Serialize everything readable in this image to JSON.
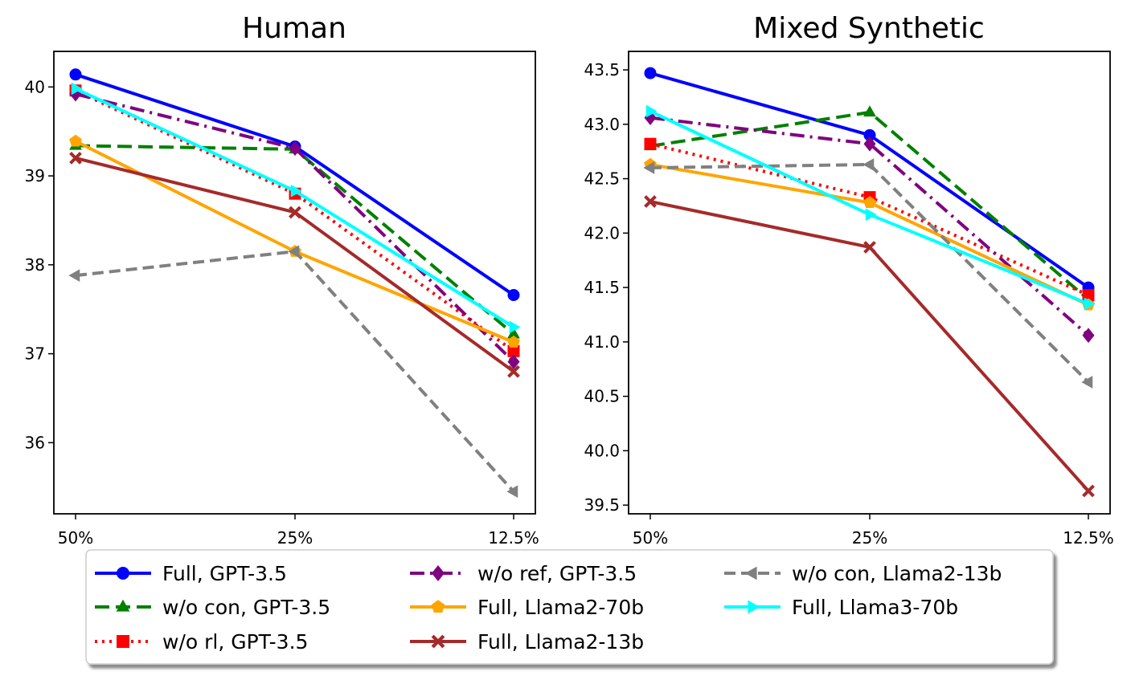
{
  "chart_data": [
    {
      "type": "line",
      "title": "Human",
      "categories": [
        "50%",
        "25%",
        "12.5%"
      ],
      "xlabel": "",
      "ylabel": "",
      "ylim": [
        35.2,
        40.4
      ],
      "yticks": [
        36,
        37,
        38,
        39,
        40
      ],
      "grid": false,
      "series": [
        {
          "name": "Full, GPT-3.5",
          "values": [
            40.14,
            39.33,
            37.66
          ]
        },
        {
          "name": "w/o con, GPT-3.5",
          "values": [
            39.34,
            39.3,
            37.22
          ]
        },
        {
          "name": "w/o rl, GPT-3.5",
          "values": [
            39.96,
            38.8,
            37.03
          ]
        },
        {
          "name": "w/o ref, GPT-3.5",
          "values": [
            39.92,
            39.31,
            36.91
          ]
        },
        {
          "name": "Full, Llama2-70b",
          "values": [
            39.39,
            38.15,
            37.13
          ]
        },
        {
          "name": "Full, Llama2-13b",
          "values": [
            39.2,
            38.59,
            36.8
          ]
        },
        {
          "name": "w/o con, Llama2-13b",
          "values": [
            37.88,
            38.15,
            35.45
          ]
        },
        {
          "name": "Full, Llama3-70b",
          "values": [
            39.98,
            38.83,
            37.3
          ]
        }
      ]
    },
    {
      "type": "line",
      "title": "Mixed Synthetic",
      "categories": [
        "50%",
        "25%",
        "12.5%"
      ],
      "xlabel": "",
      "ylabel": "",
      "ylim": [
        39.42,
        43.67
      ],
      "yticks": [
        39.5,
        40.0,
        40.5,
        41.0,
        41.5,
        42.0,
        42.5,
        43.0,
        43.5
      ],
      "ytick_labels": [
        "39.5",
        "40.0",
        "40.5",
        "41.0",
        "41.5",
        "42.0",
        "42.5",
        "43.0",
        "43.5"
      ],
      "grid": false,
      "series": [
        {
          "name": "Full, GPT-3.5",
          "values": [
            43.47,
            42.9,
            41.5
          ]
        },
        {
          "name": "w/o con, GPT-3.5",
          "values": [
            42.8,
            43.11,
            41.39
          ]
        },
        {
          "name": "w/o rl, GPT-3.5",
          "values": [
            42.82,
            42.33,
            41.43
          ]
        },
        {
          "name": "w/o ref, GPT-3.5",
          "values": [
            43.06,
            42.82,
            41.06
          ]
        },
        {
          "name": "Full, Llama2-70b",
          "values": [
            42.63,
            42.28,
            41.34
          ]
        },
        {
          "name": "Full, Llama2-13b",
          "values": [
            42.29,
            41.87,
            39.63
          ]
        },
        {
          "name": "w/o con, Llama2-13b",
          "values": [
            42.6,
            42.63,
            40.63
          ]
        },
        {
          "name": "Full, Llama3-70b",
          "values": [
            43.12,
            42.17,
            41.35
          ]
        }
      ]
    }
  ],
  "legend": {
    "placement": "bottom",
    "columns": 3,
    "entries": [
      "Full, GPT-3.5",
      "w/o con, GPT-3.5",
      "w/o rl, GPT-3.5",
      "w/o ref, GPT-3.5",
      "Full, Llama2-70b",
      "Full, Llama2-13b",
      "w/o con, Llama2-13b",
      "Full, Llama3-70b"
    ]
  },
  "styles": [
    {
      "color": "#0000ff",
      "dash": "",
      "marker": "circle"
    },
    {
      "color": "#008000",
      "dash": "18 8",
      "marker": "triangle-up"
    },
    {
      "color": "#ff0000",
      "dash": "3 6",
      "marker": "square"
    },
    {
      "color": "#800080",
      "dash": "18 7 3 7",
      "marker": "diamond"
    },
    {
      "color": "#ffa500",
      "dash": "",
      "marker": "pentagon"
    },
    {
      "color": "#a52a2a",
      "dash": "",
      "marker": "x-filled"
    },
    {
      "color": "#808080",
      "dash": "14 7",
      "marker": "triangle-left"
    },
    {
      "color": "#00ffff",
      "dash": "",
      "marker": "triangle-right"
    }
  ]
}
